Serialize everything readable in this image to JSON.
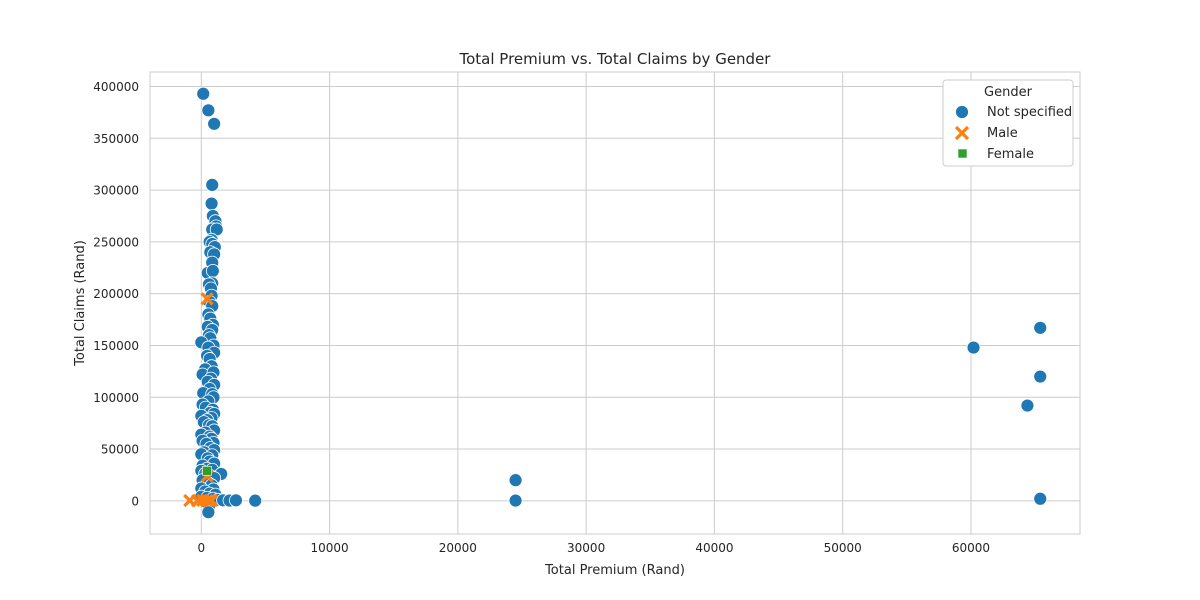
{
  "chart_data": {
    "type": "scatter",
    "title": "Total Premium vs. Total Claims by Gender",
    "xlabel": "Total Premium (Rand)",
    "ylabel": "Total Claims (Rand)",
    "xlim": [
      -4000,
      68500
    ],
    "ylim": [
      -32000,
      414000
    ],
    "xticks": [
      0,
      10000,
      20000,
      30000,
      40000,
      50000,
      60000
    ],
    "yticks": [
      0,
      50000,
      100000,
      150000,
      200000,
      250000,
      300000,
      350000,
      400000
    ],
    "grid": true,
    "legend": {
      "title": "Gender",
      "placement": "top-right",
      "entries": [
        "Not specified",
        "Male",
        "Female"
      ]
    },
    "colors": {
      "Not specified": "#1f77b4",
      "Male": "#ff7f0e",
      "Female": "#2ca02c"
    },
    "series": [
      {
        "name": "Not specified",
        "marker": "circle",
        "points": [
          [
            150,
            393000
          ],
          [
            550,
            377000
          ],
          [
            1000,
            364000
          ],
          [
            850,
            305000
          ],
          [
            800,
            287000
          ],
          [
            900,
            275000
          ],
          [
            1100,
            270000
          ],
          [
            1150,
            265000
          ],
          [
            850,
            262000
          ],
          [
            1200,
            262000
          ],
          [
            800,
            252000
          ],
          [
            650,
            250000
          ],
          [
            850,
            248000
          ],
          [
            1050,
            245000
          ],
          [
            700,
            240000
          ],
          [
            1000,
            238000
          ],
          [
            850,
            230000
          ],
          [
            500,
            220000
          ],
          [
            900,
            222000
          ],
          [
            850,
            210000
          ],
          [
            600,
            209000
          ],
          [
            750,
            205000
          ],
          [
            800,
            198000
          ],
          [
            650,
            192000
          ],
          [
            850,
            188000
          ],
          [
            550,
            180000
          ],
          [
            700,
            176000
          ],
          [
            900,
            170000
          ],
          [
            500,
            168000
          ],
          [
            850,
            165000
          ],
          [
            600,
            160000
          ],
          [
            700,
            157000
          ],
          [
            0,
            153000
          ],
          [
            950,
            150000
          ],
          [
            550,
            148000
          ],
          [
            1000,
            143000
          ],
          [
            450,
            140000
          ],
          [
            650,
            137000
          ],
          [
            800,
            130000
          ],
          [
            300,
            127000
          ],
          [
            100,
            122000
          ],
          [
            950,
            124000
          ],
          [
            750,
            118000
          ],
          [
            500,
            115000
          ],
          [
            1000,
            112000
          ],
          [
            650,
            108000
          ],
          [
            150,
            104000
          ],
          [
            850,
            103000
          ],
          [
            950,
            100000
          ],
          [
            550,
            96000
          ],
          [
            100,
            93000
          ],
          [
            350,
            90000
          ],
          [
            900,
            88000
          ],
          [
            700,
            85000
          ],
          [
            1000,
            84000
          ],
          [
            0,
            82000
          ],
          [
            800,
            80000
          ],
          [
            450,
            78000
          ],
          [
            200,
            76000
          ],
          [
            600,
            73000
          ],
          [
            850,
            72000
          ],
          [
            1000,
            68000
          ],
          [
            300,
            66000
          ],
          [
            0,
            64000
          ],
          [
            650,
            62000
          ],
          [
            800,
            60000
          ],
          [
            100,
            58000
          ],
          [
            950,
            56000
          ],
          [
            400,
            55000
          ],
          [
            700,
            51000
          ],
          [
            1000,
            49000
          ],
          [
            200,
            47000
          ],
          [
            0,
            45000
          ],
          [
            850,
            44000
          ],
          [
            500,
            41000
          ],
          [
            650,
            38000
          ],
          [
            1000,
            36000
          ],
          [
            100,
            34000
          ],
          [
            450,
            31000
          ],
          [
            850,
            30000
          ],
          [
            0,
            29000
          ],
          [
            300,
            26000
          ],
          [
            1550,
            26000
          ],
          [
            700,
            24000
          ],
          [
            1000,
            22000
          ],
          [
            100,
            20000
          ],
          [
            550,
            17000
          ],
          [
            800,
            15000
          ],
          [
            0,
            12000
          ],
          [
            950,
            11000
          ],
          [
            300,
            9000
          ],
          [
            650,
            7000
          ],
          [
            1100,
            6000
          ],
          [
            0,
            4000
          ],
          [
            450,
            3000
          ],
          [
            900,
            2000
          ],
          [
            1300,
            1000
          ],
          [
            1700,
            500
          ],
          [
            2200,
            300
          ],
          [
            2700,
            500
          ],
          [
            4200,
            200
          ],
          [
            600,
            -5000
          ],
          [
            550,
            -11000
          ],
          [
            24500,
            20000
          ],
          [
            24500,
            300
          ],
          [
            60200,
            148000
          ],
          [
            65400,
            167000
          ],
          [
            65400,
            120000
          ],
          [
            64400,
            92000
          ],
          [
            65400,
            2000
          ]
        ]
      },
      {
        "name": "Male",
        "marker": "x",
        "points": [
          [
            450,
            195000
          ],
          [
            -900,
            300
          ],
          [
            -300,
            200
          ],
          [
            100,
            500
          ],
          [
            450,
            300
          ],
          [
            650,
            200
          ],
          [
            800,
            400
          ],
          [
            450,
            24000
          ]
        ]
      },
      {
        "name": "Female",
        "marker": "square",
        "points": [
          [
            450,
            29000
          ]
        ]
      }
    ]
  }
}
